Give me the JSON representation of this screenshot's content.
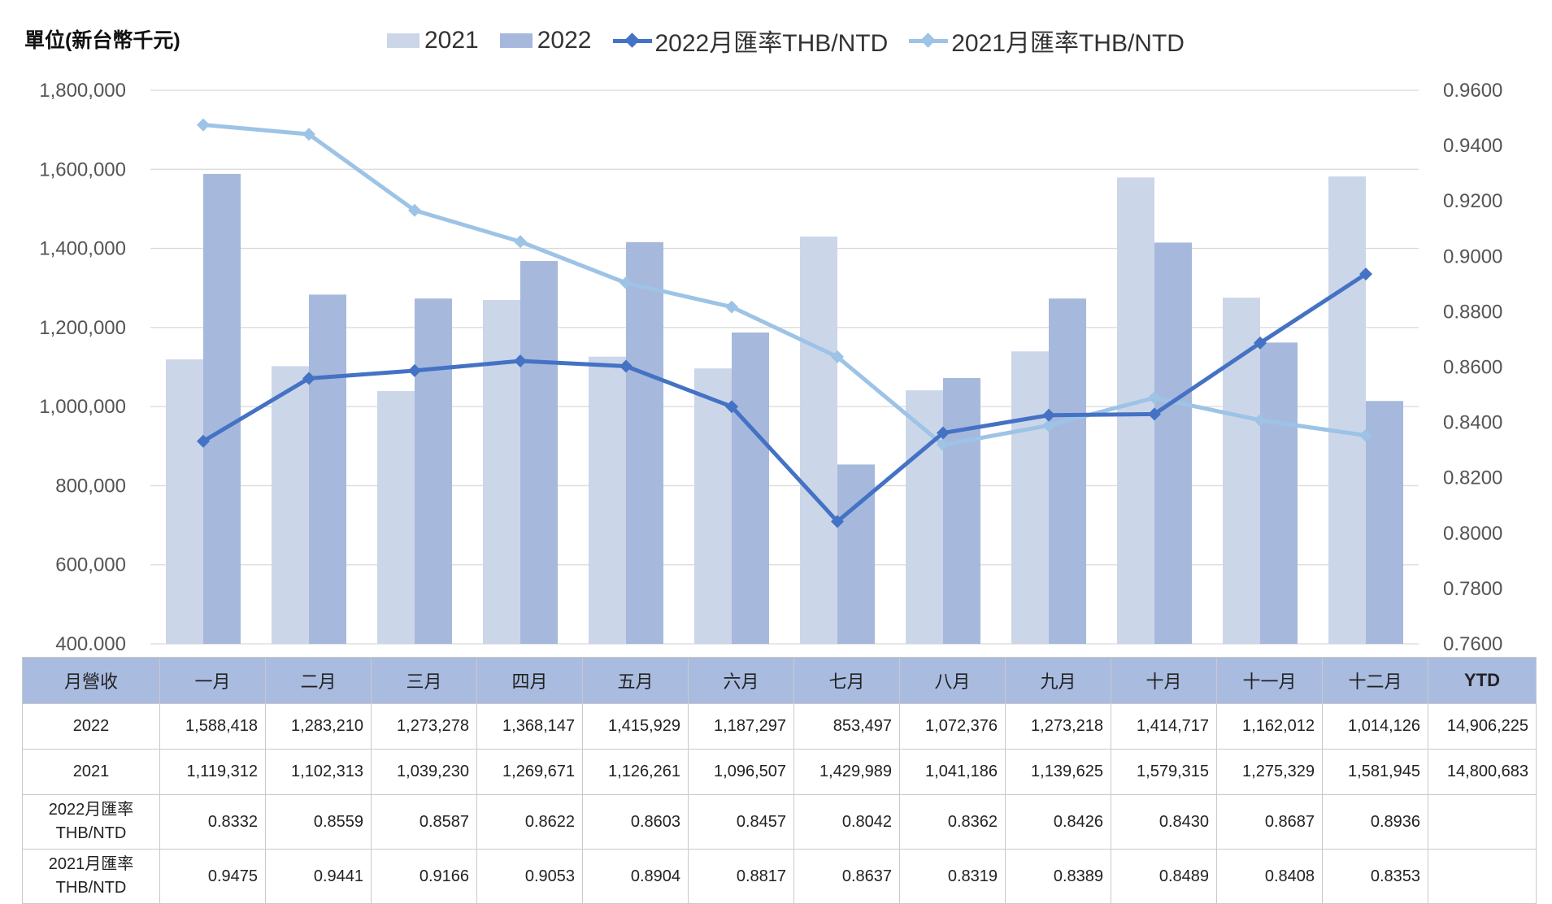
{
  "unit_label": "單位(新台幣千元)",
  "legend": {
    "bar_2021": "2021",
    "bar_2022": "2022",
    "line_2022": "2022月匯率THB/NTD",
    "line_2021": "2021月匯率THB/NTD"
  },
  "colors": {
    "bar_2021": "#ccd6e9",
    "bar_2022": "#a6b8dc",
    "line_2022": "#4472c4",
    "line_2021": "#9dc3e6",
    "table_header_bg": "#a9bce0"
  },
  "chart_data": {
    "type": "bar+line",
    "categories": [
      "一月",
      "二月",
      "三月",
      "四月",
      "五月",
      "六月",
      "七月",
      "八月",
      "九月",
      "十月",
      "十一月",
      "十二月"
    ],
    "bar_series": [
      {
        "name": "2021",
        "values": [
          1119312,
          1102313,
          1039230,
          1269671,
          1126261,
          1096507,
          1429989,
          1041186,
          1139625,
          1579315,
          1275329,
          1581945
        ]
      },
      {
        "name": "2022",
        "values": [
          1588418,
          1283210,
          1273278,
          1368147,
          1415929,
          1187297,
          853497,
          1072376,
          1273218,
          1414717,
          1162012,
          1014126
        ]
      }
    ],
    "line_series": [
      {
        "name": "2022月匯率THB/NTD",
        "values": [
          0.8332,
          0.8559,
          0.8587,
          0.8622,
          0.8603,
          0.8457,
          0.8042,
          0.8362,
          0.8426,
          0.843,
          0.8687,
          0.8936
        ]
      },
      {
        "name": "2021月匯率THB/NTD",
        "values": [
          0.9475,
          0.9441,
          0.9166,
          0.9053,
          0.8904,
          0.8817,
          0.8637,
          0.8319,
          0.8389,
          0.8489,
          0.8408,
          0.8353
        ]
      }
    ],
    "y_left": {
      "min": 400000,
      "max": 1800000,
      "step": 200000
    },
    "y_right": {
      "min": 0.76,
      "max": 0.96,
      "step": 0.02
    },
    "y_left_ticks": [
      "400,000",
      "600,000",
      "800,000",
      "1,000,000",
      "1,200,000",
      "1,400,000",
      "1,600,000",
      "1,800,000"
    ],
    "y_right_ticks": [
      "0.7600",
      "0.7800",
      "0.8000",
      "0.8200",
      "0.8400",
      "0.8600",
      "0.8800",
      "0.9000",
      "0.9200",
      "0.9400",
      "0.9600"
    ],
    "grid": true,
    "legend_position": "top"
  },
  "table": {
    "header": [
      "月營收",
      "一月",
      "二月",
      "三月",
      "四月",
      "五月",
      "六月",
      "七月",
      "八月",
      "九月",
      "十月",
      "十一月",
      "十二月",
      "YTD"
    ],
    "rows": [
      {
        "label": "2022",
        "cells": [
          "1,588,418",
          "1,283,210",
          "1,273,278",
          "1,368,147",
          "1,415,929",
          "1,187,297",
          "853,497",
          "1,072,376",
          "1,273,218",
          "1,414,717",
          "1,162,012",
          "1,014,126",
          "14,906,225"
        ]
      },
      {
        "label": "2021",
        "cells": [
          "1,119,312",
          "1,102,313",
          "1,039,230",
          "1,269,671",
          "1,126,261",
          "1,096,507",
          "1,429,989",
          "1,041,186",
          "1,139,625",
          "1,579,315",
          "1,275,329",
          "1,581,945",
          "14,800,683"
        ]
      },
      {
        "label1": "2022月匯率",
        "label2": "THB/NTD",
        "cells": [
          "0.8332",
          "0.8559",
          "0.8587",
          "0.8622",
          "0.8603",
          "0.8457",
          "0.8042",
          "0.8362",
          "0.8426",
          "0.8430",
          "0.8687",
          "0.8936",
          ""
        ]
      },
      {
        "label1": "2021月匯率",
        "label2": "THB/NTD",
        "cells": [
          "0.9475",
          "0.9441",
          "0.9166",
          "0.9053",
          "0.8904",
          "0.8817",
          "0.8637",
          "0.8319",
          "0.8389",
          "0.8489",
          "0.8408",
          "0.8353",
          ""
        ]
      }
    ]
  }
}
